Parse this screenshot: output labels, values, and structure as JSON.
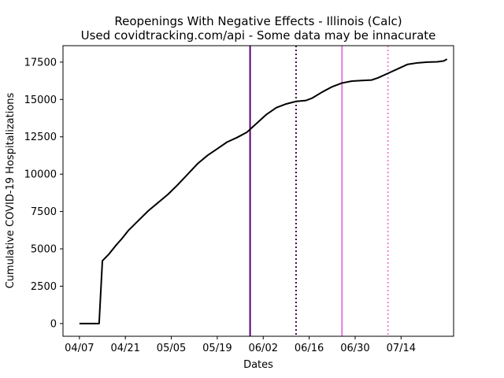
{
  "chart_data": {
    "type": "line",
    "title": "Reopenings With Negative Effects - Illinois (Calc)",
    "subtitle": "Used covidtracking.com/api - Some data may be innacurate",
    "xlabel": "Dates",
    "ylabel": "Cumulative COVID-19 Hospitalizations",
    "x_tick_labels": [
      "04/07",
      "04/21",
      "05/05",
      "05/19",
      "06/02",
      "06/16",
      "06/30",
      "07/14"
    ],
    "y_ticks": [
      0,
      2500,
      5000,
      7500,
      10000,
      12500,
      15000,
      17500
    ],
    "xlim": [
      "2020-04-02",
      "2020-07-30"
    ],
    "ylim": [
      -850,
      18600
    ],
    "grid": false,
    "series": [
      {
        "color": "#000000",
        "points": [
          [
            "2020-04-07",
            0
          ],
          [
            "2020-04-10",
            0
          ],
          [
            "2020-04-13",
            0
          ],
          [
            "2020-04-14",
            4200
          ],
          [
            "2020-04-16",
            4650
          ],
          [
            "2020-04-18",
            5200
          ],
          [
            "2020-04-20",
            5700
          ],
          [
            "2020-04-22",
            6250
          ],
          [
            "2020-04-25",
            6900
          ],
          [
            "2020-04-28",
            7550
          ],
          [
            "2020-05-01",
            8100
          ],
          [
            "2020-05-04",
            8650
          ],
          [
            "2020-05-07",
            9300
          ],
          [
            "2020-05-10",
            10000
          ],
          [
            "2020-05-13",
            10700
          ],
          [
            "2020-05-16",
            11250
          ],
          [
            "2020-05-19",
            11700
          ],
          [
            "2020-05-22",
            12150
          ],
          [
            "2020-05-25",
            12450
          ],
          [
            "2020-05-28",
            12800
          ],
          [
            "2020-05-31",
            13400
          ],
          [
            "2020-06-03",
            14000
          ],
          [
            "2020-06-06",
            14450
          ],
          [
            "2020-06-09",
            14700
          ],
          [
            "2020-06-12",
            14870
          ],
          [
            "2020-06-15",
            14930
          ],
          [
            "2020-06-17",
            15100
          ],
          [
            "2020-06-20",
            15500
          ],
          [
            "2020-06-23",
            15850
          ],
          [
            "2020-06-26",
            16100
          ],
          [
            "2020-06-29",
            16230
          ],
          [
            "2020-07-02",
            16270
          ],
          [
            "2020-07-05",
            16300
          ],
          [
            "2020-07-07",
            16450
          ],
          [
            "2020-07-10",
            16750
          ],
          [
            "2020-07-13",
            17050
          ],
          [
            "2020-07-16",
            17350
          ],
          [
            "2020-07-19",
            17450
          ],
          [
            "2020-07-22",
            17500
          ],
          [
            "2020-07-25",
            17520
          ],
          [
            "2020-07-27",
            17580
          ],
          [
            "2020-07-28",
            17700
          ]
        ]
      }
    ],
    "vertical_lines": [
      {
        "x": "2020-05-29",
        "color": "#5a0070",
        "style": "solid"
      },
      {
        "x": "2020-06-12",
        "color": "#3a1048",
        "style": "dotted"
      },
      {
        "x": "2020-06-26",
        "color": "#e07be3",
        "style": "solid"
      },
      {
        "x": "2020-07-10",
        "color": "#e88ad8",
        "style": "dotted"
      }
    ]
  }
}
